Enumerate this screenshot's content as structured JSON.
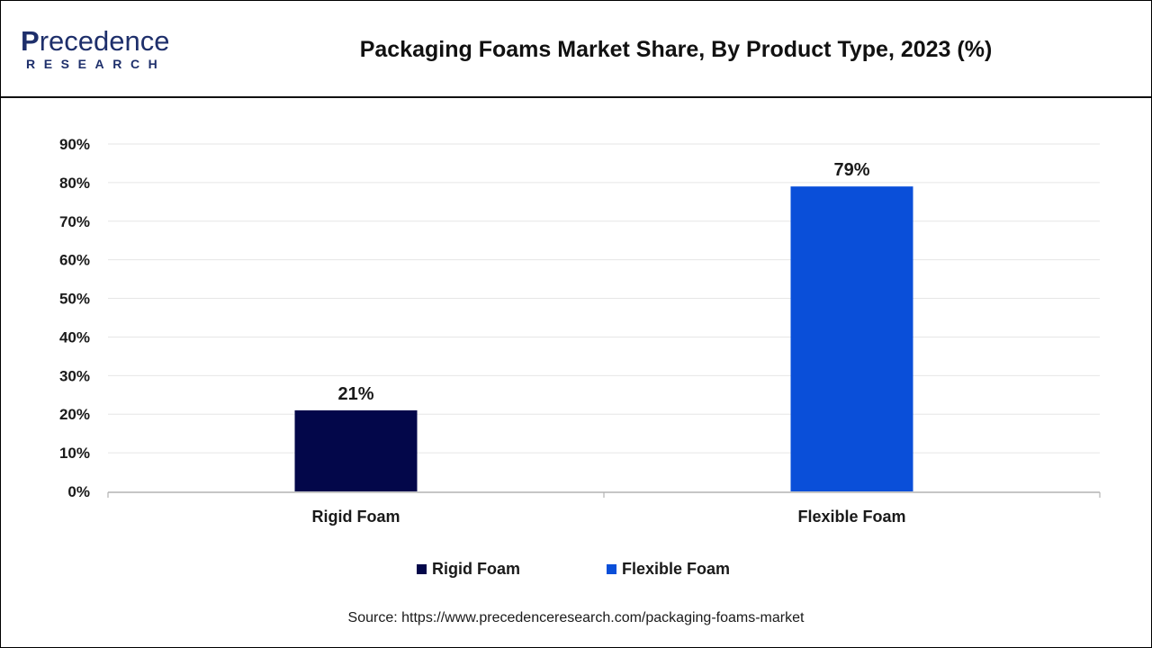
{
  "header": {
    "logo_main": "Precedence",
    "logo_sub": "RESEARCH",
    "title": "Packaging Foams Market Share, By Product Type, 2023 (%)"
  },
  "chart_data": {
    "type": "bar",
    "categories": [
      "Rigid Foam",
      "Flexible Foam"
    ],
    "values": [
      21,
      79
    ],
    "data_labels": [
      "21%",
      "79%"
    ],
    "colors": [
      "#03074a",
      "#0a4fd9"
    ],
    "y_ticks": [
      "0%",
      "10%",
      "20%",
      "30%",
      "40%",
      "50%",
      "60%",
      "70%",
      "80%",
      "90%"
    ],
    "ylim": [
      0,
      90
    ],
    "grid": true,
    "legend_position": "bottom-center",
    "legend": [
      "Rigid Foam",
      "Flexible Foam"
    ]
  },
  "footer": {
    "source": "Source: https://www.precedenceresearch.com/packaging-foams-market"
  }
}
